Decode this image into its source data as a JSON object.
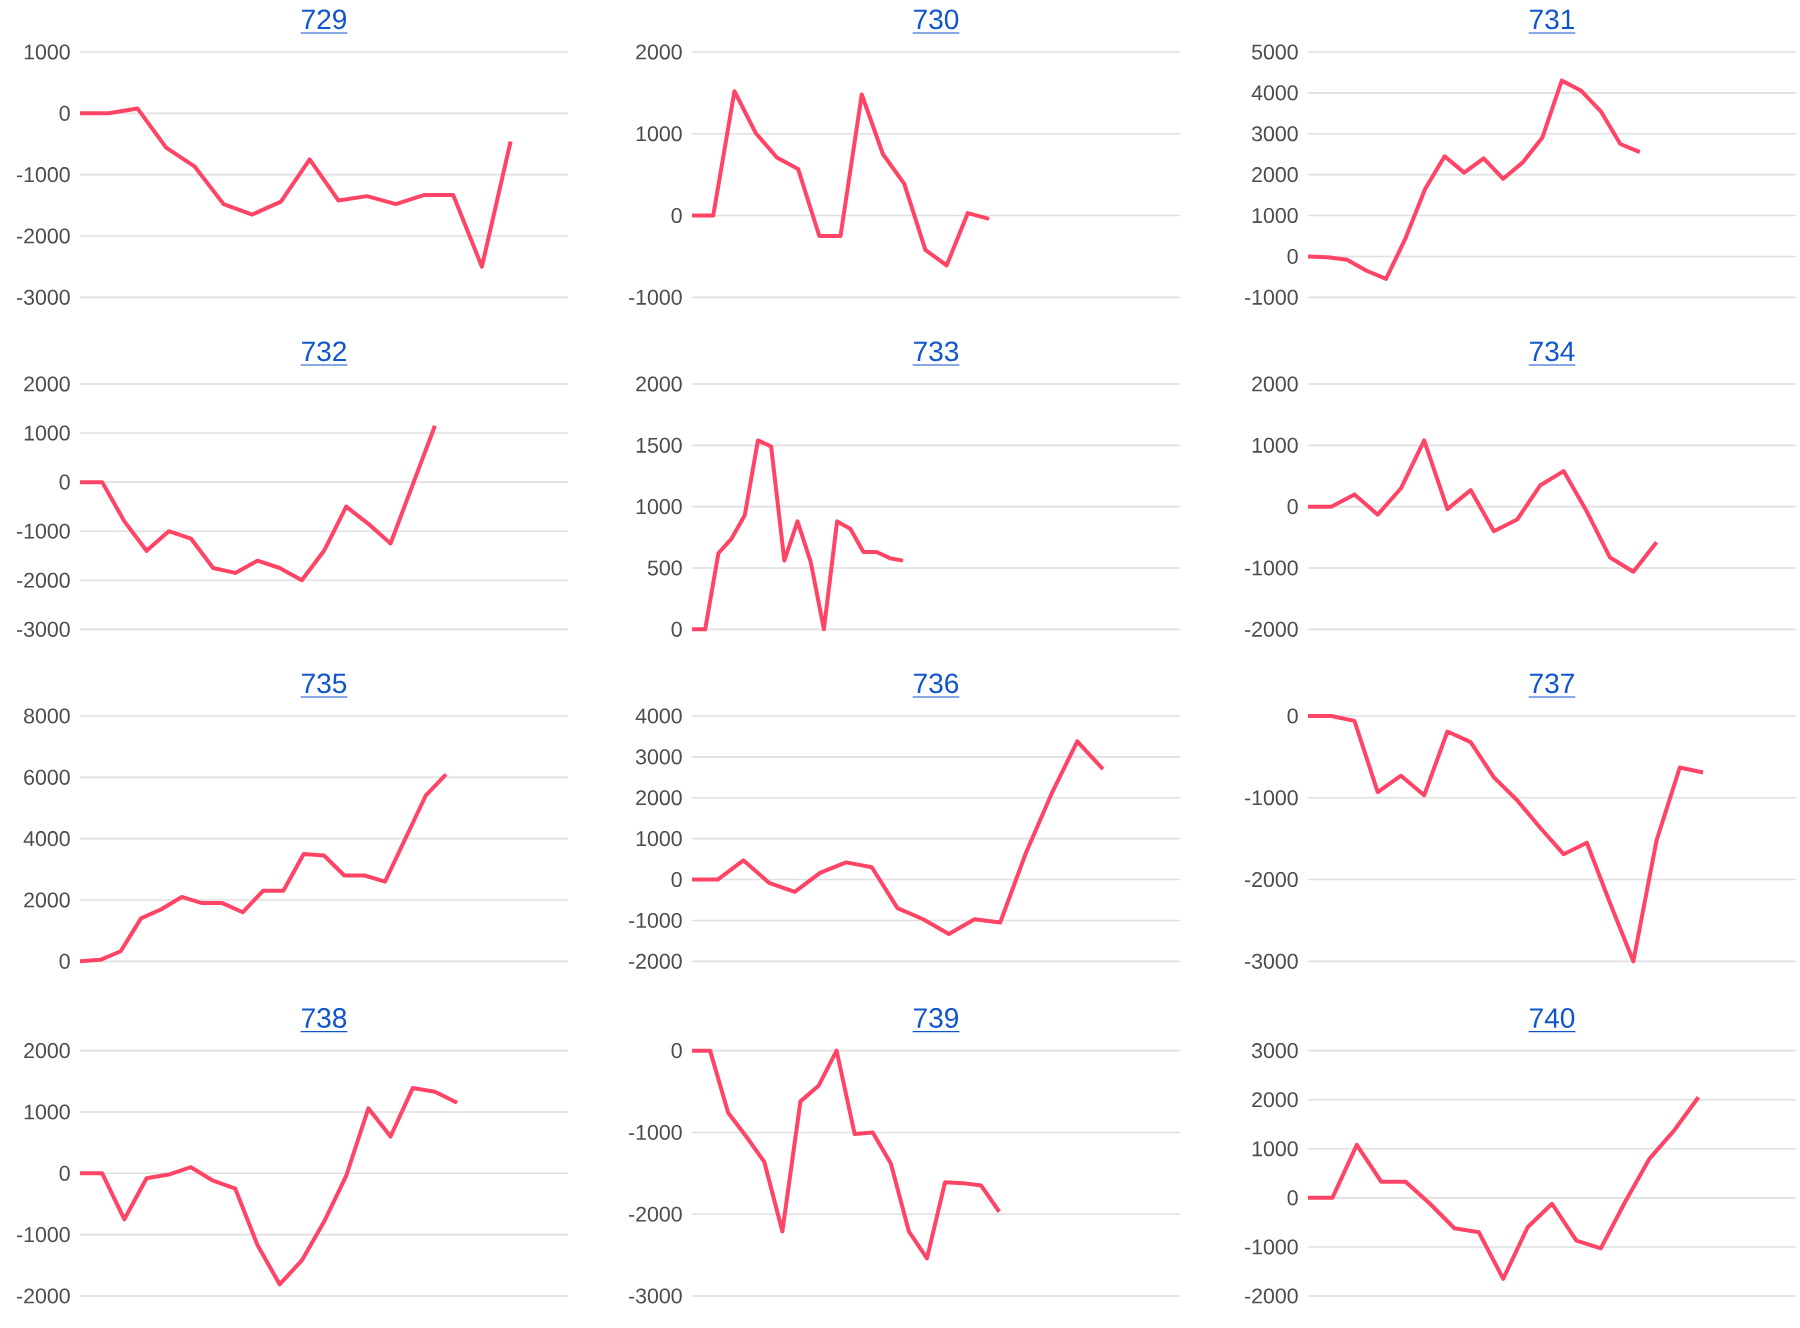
{
  "chart_data": [
    {
      "type": "line",
      "title": "729",
      "color": "#ff4466",
      "grid": "y",
      "tick_labels": "y",
      "ylim": [
        -3000,
        1000
      ],
      "yticks": [
        -3000,
        -2000,
        -1000,
        0,
        1000
      ],
      "categories": [
        null,
        null,
        null,
        null,
        null,
        null,
        null,
        null,
        null,
        null,
        null,
        null,
        null,
        null,
        null,
        null,
        null,
        null
      ],
      "values": [
        0,
        0,
        80,
        -560,
        -870,
        -1480,
        -1650,
        -1440,
        -750,
        -1420,
        -1350,
        -1480,
        -1330,
        -1330,
        -2500,
        -460,
        null,
        null
      ]
    },
    {
      "type": "line",
      "title": "730",
      "color": "#ff4466",
      "grid": "y",
      "tick_labels": "y",
      "ylim": [
        -1000,
        2000
      ],
      "yticks": [
        -1000,
        0,
        1000,
        2000
      ],
      "categories": [
        null,
        null,
        null,
        null,
        null,
        null,
        null,
        null,
        null,
        null,
        null,
        null,
        null,
        null,
        null,
        null,
        null,
        null,
        null,
        null,
        null,
        null,
        null,
        null
      ],
      "values": [
        0,
        0,
        1520,
        1010,
        710,
        570,
        -250,
        -250,
        1480,
        750,
        390,
        -420,
        -610,
        30,
        -40,
        null,
        null,
        null,
        null,
        null,
        null,
        null,
        null,
        null
      ]
    },
    {
      "type": "line",
      "title": "731",
      "color": "#ff4466",
      "grid": "y",
      "tick_labels": "y",
      "ylim": [
        -1000,
        5000
      ],
      "yticks": [
        -1000,
        0,
        1000,
        2000,
        3000,
        4000,
        5000
      ],
      "categories": [
        null,
        null,
        null,
        null,
        null,
        null,
        null,
        null,
        null,
        null,
        null,
        null,
        null,
        null,
        null,
        null,
        null,
        null,
        null,
        null,
        null,
        null,
        null,
        null,
        null,
        null
      ],
      "values": [
        0,
        -20,
        -80,
        -350,
        -550,
        450,
        1650,
        2450,
        2050,
        2400,
        1900,
        2300,
        2900,
        4300,
        4050,
        3550,
        2750,
        2550,
        null,
        null,
        null,
        null,
        null,
        null,
        null,
        null
      ]
    },
    {
      "type": "line",
      "title": "732",
      "color": "#ff4466",
      "grid": "y",
      "tick_labels": "y",
      "ylim": [
        -3000,
        2000
      ],
      "yticks": [
        -3000,
        -2000,
        -1000,
        0,
        1000,
        2000
      ],
      "categories": [
        null,
        null,
        null,
        null,
        null,
        null,
        null,
        null,
        null,
        null,
        null,
        null,
        null,
        null,
        null,
        null,
        null,
        null,
        null,
        null,
        null,
        null,
        null
      ],
      "values": [
        0,
        0,
        -800,
        -1400,
        -1000,
        -1150,
        -1750,
        -1850,
        -1600,
        -1750,
        -2000,
        -1400,
        -500,
        -850,
        -1250,
        -50,
        1150,
        null,
        null,
        null,
        null,
        null,
        null
      ]
    },
    {
      "type": "line",
      "title": "733",
      "color": "#ff4466",
      "grid": "y",
      "tick_labels": "y",
      "ylim": [
        0,
        2000
      ],
      "yticks": [
        0,
        500,
        1000,
        1500,
        2000
      ],
      "categories": [
        null,
        null,
        null,
        null,
        null,
        null,
        null,
        null,
        null,
        null,
        null,
        null,
        null,
        null,
        null,
        null,
        null,
        null,
        null,
        null,
        null,
        null,
        null,
        null,
        null,
        null,
        null,
        null,
        null,
        null,
        null,
        null,
        null,
        null,
        null,
        null,
        null,
        null
      ],
      "values": [
        0,
        0,
        620,
        740,
        930,
        1540,
        1490,
        560,
        880,
        550,
        0,
        880,
        820,
        630,
        630,
        580,
        560,
        null,
        null,
        null,
        null,
        null,
        null,
        null,
        null,
        null,
        null,
        null,
        null,
        null,
        null,
        null,
        null,
        null,
        null,
        null,
        null,
        null
      ]
    },
    {
      "type": "line",
      "title": "734",
      "color": "#ff4466",
      "grid": "y",
      "tick_labels": "y",
      "ylim": [
        -2000,
        2000
      ],
      "yticks": [
        -2000,
        -1000,
        0,
        1000,
        2000
      ],
      "categories": [
        null,
        null,
        null,
        null,
        null,
        null,
        null,
        null,
        null,
        null,
        null,
        null,
        null,
        null,
        null,
        null,
        null,
        null,
        null,
        null,
        null,
        null
      ],
      "values": [
        0,
        0,
        200,
        -130,
        300,
        1080,
        -40,
        270,
        -400,
        -210,
        350,
        580,
        -80,
        -830,
        -1060,
        -580,
        null,
        null,
        null,
        null,
        null,
        null
      ]
    },
    {
      "type": "line",
      "title": "735",
      "color": "#ff4466",
      "grid": "y",
      "tick_labels": "y",
      "ylim": [
        0,
        8000
      ],
      "yticks": [
        0,
        2000,
        4000,
        6000,
        8000
      ],
      "categories": [
        null,
        null,
        null,
        null,
        null,
        null,
        null,
        null,
        null,
        null,
        null,
        null,
        null,
        null,
        null,
        null,
        null,
        null,
        null,
        null,
        null,
        null,
        null,
        null,
        null
      ],
      "values": [
        0,
        50,
        330,
        1400,
        1700,
        2100,
        1900,
        1900,
        1600,
        2300,
        2300,
        3500,
        3450,
        2800,
        2800,
        2600,
        4000,
        5400,
        6100,
        null,
        null,
        null,
        null,
        null,
        null
      ]
    },
    {
      "type": "line",
      "title": "736",
      "color": "#ff4466",
      "grid": "y",
      "tick_labels": "y",
      "ylim": [
        -2000,
        4000
      ],
      "yticks": [
        -2000,
        -1000,
        0,
        1000,
        2000,
        3000,
        4000
      ],
      "categories": [
        null,
        null,
        null,
        null,
        null,
        null,
        null,
        null,
        null,
        null,
        null,
        null,
        null,
        null,
        null,
        null,
        null,
        null,
        null,
        null
      ],
      "values": [
        0,
        0,
        470,
        -80,
        -300,
        170,
        420,
        300,
        -700,
        -970,
        -1330,
        -970,
        -1050,
        650,
        2100,
        3380,
        2700,
        null,
        null,
        null
      ]
    },
    {
      "type": "line",
      "title": "737",
      "color": "#ff4466",
      "grid": "y",
      "tick_labels": "y",
      "ylim": [
        -3000,
        0
      ],
      "yticks": [
        -3000,
        -2000,
        -1000,
        0
      ],
      "categories": [
        null,
        null,
        null,
        null,
        null,
        null,
        null,
        null,
        null,
        null,
        null,
        null,
        null,
        null,
        null,
        null,
        null,
        null,
        null,
        null,
        null,
        null
      ],
      "values": [
        0,
        0,
        -60,
        -930,
        -730,
        -970,
        -190,
        -320,
        -750,
        -1030,
        -1370,
        -1690,
        -1550,
        -2290,
        -3000,
        -1520,
        -630,
        -690,
        null,
        null,
        null,
        null
      ]
    },
    {
      "type": "line",
      "title": "738",
      "color": "#ff4466",
      "grid": "y",
      "tick_labels": "y",
      "ylim": [
        -2000,
        2000
      ],
      "yticks": [
        -2000,
        -1000,
        0,
        1000,
        2000
      ],
      "categories": [
        null,
        null,
        null,
        null,
        null,
        null,
        null,
        null,
        null,
        null,
        null,
        null,
        null,
        null,
        null,
        null,
        null,
        null,
        null,
        null,
        null,
        null,
        null
      ],
      "values": [
        0,
        0,
        -750,
        -80,
        -20,
        100,
        -120,
        -250,
        -1170,
        -1810,
        -1420,
        -790,
        -40,
        1060,
        600,
        1390,
        1330,
        1150,
        null,
        null,
        null,
        null,
        null
      ]
    },
    {
      "type": "line",
      "title": "739",
      "color": "#ff4466",
      "grid": "y",
      "tick_labels": "y",
      "ylim": [
        -3000,
        0
      ],
      "yticks": [
        -3000,
        -2000,
        -1000,
        0
      ],
      "categories": [
        null,
        null,
        null,
        null,
        null,
        null,
        null,
        null,
        null,
        null,
        null,
        null,
        null,
        null,
        null,
        null,
        null,
        null,
        null,
        null,
        null,
        null,
        null,
        null,
        null,
        null,
        null,
        null
      ],
      "values": [
        0,
        0,
        -760,
        -1050,
        -1360,
        -2210,
        -620,
        -430,
        0,
        -1020,
        -1000,
        -1380,
        -2210,
        -2540,
        -1610,
        -1620,
        -1650,
        -1970,
        null,
        null,
        null,
        null,
        null,
        null,
        null,
        null,
        null,
        null
      ]
    },
    {
      "type": "line",
      "title": "740",
      "color": "#ff4466",
      "grid": "y",
      "tick_labels": "y",
      "ylim": [
        -2000,
        3000
      ],
      "yticks": [
        -2000,
        -1000,
        0,
        1000,
        2000,
        3000
      ],
      "categories": [
        null,
        null,
        null,
        null,
        null,
        null,
        null,
        null,
        null,
        null,
        null,
        null,
        null,
        null,
        null,
        null,
        null,
        null,
        null,
        null,
        null
      ],
      "values": [
        0,
        0,
        1080,
        330,
        330,
        -120,
        -620,
        -700,
        -1650,
        -600,
        -120,
        -870,
        -1030,
        -80,
        800,
        1370,
        2050,
        null,
        null,
        null,
        null
      ]
    }
  ]
}
